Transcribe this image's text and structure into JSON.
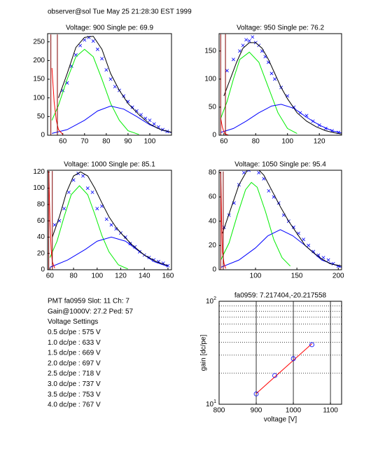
{
  "header": "observer@sol  Tue May 25 21:28:30 EST 1999",
  "info": [
    "PMT fa0959 Slot: 11 Ch: 7",
    "Gain@1000V: 27.2 Ped: 57",
    "Voltage Settings",
    "0.5 dc/pe : 575 V",
    "1.0 dc/pe : 633 V",
    "1.5 dc/pe : 669 V",
    "2.0 dc/pe : 697 V",
    "2.5 dc/pe : 718 V",
    "3.0 dc/pe : 737 V",
    "3.5 dc/pe : 753 V",
    "4.0 dc/pe : 767 V"
  ],
  "chart_data": [
    {
      "type": "line",
      "title": "Voltage: 900 Single pe: 69.9",
      "xlim": [
        53,
        110
      ],
      "ylim": [
        0,
        272
      ],
      "xticks": [
        60,
        70,
        80,
        90,
        100
      ],
      "yticks": [
        0,
        50,
        100,
        150,
        200,
        250
      ],
      "series": [
        {
          "color": "#0000ff",
          "marker": "x",
          "x": [
            60,
            62,
            64,
            66,
            68,
            70,
            72,
            74,
            76,
            78,
            80,
            82,
            84,
            86,
            88,
            90,
            92,
            94,
            96,
            98,
            100,
            102,
            104,
            106,
            108
          ],
          "values": [
            120,
            140,
            185,
            215,
            240,
            255,
            262,
            252,
            230,
            205,
            175,
            150,
            130,
            120,
            105,
            90,
            75,
            65,
            55,
            45,
            40,
            30,
            22,
            15,
            10
          ]
        },
        {
          "color": "#00ee00",
          "x": [
            55,
            58,
            62,
            66,
            70,
            74,
            78,
            82,
            86,
            90,
            95
          ],
          "values": [
            40,
            80,
            150,
            210,
            230,
            210,
            150,
            85,
            40,
            12,
            2
          ]
        },
        {
          "color": "#0000ff",
          "x": [
            55,
            62,
            70,
            76,
            82,
            88,
            94,
            100,
            106,
            110
          ],
          "values": [
            5,
            15,
            40,
            65,
            78,
            70,
            50,
            28,
            13,
            7
          ]
        },
        {
          "color": "#000000",
          "x": [
            58,
            62,
            66,
            70,
            74,
            78,
            82,
            86,
            90,
            95,
            100,
            105,
            110
          ],
          "values": [
            100,
            165,
            235,
            262,
            265,
            230,
            165,
            120,
            85,
            55,
            30,
            15,
            8
          ]
        },
        {
          "color": "#ff0000",
          "x": [
            55,
            56,
            57,
            58,
            60
          ],
          "values": [
            180,
            90,
            40,
            15,
            2
          ]
        },
        {
          "color": "#800000",
          "x": [
            54.5,
            54.5,
            null,
            57.5,
            57.5
          ],
          "values": [
            0,
            270,
            null,
            0,
            270
          ]
        }
      ]
    },
    {
      "type": "line",
      "title": "Voltage: 950 Single pe: 76.2",
      "xlim": [
        57,
        134
      ],
      "ylim": [
        0,
        181
      ],
      "xticks": [
        60,
        80,
        100,
        120
      ],
      "yticks": [
        0,
        50,
        100,
        150
      ],
      "series": [
        {
          "color": "#0000ff",
          "marker": "x",
          "x": [
            62,
            66,
            70,
            72,
            74,
            76,
            78,
            80,
            82,
            84,
            86,
            88,
            90,
            92,
            96,
            100,
            104,
            108,
            112,
            116,
            120,
            124,
            128,
            132
          ],
          "values": [
            115,
            135,
            150,
            160,
            170,
            168,
            175,
            165,
            160,
            150,
            140,
            130,
            110,
            100,
            85,
            70,
            50,
            40,
            35,
            25,
            18,
            12,
            8,
            5
          ]
        },
        {
          "color": "#00ee00",
          "x": [
            58,
            62,
            66,
            70,
            76,
            82,
            88,
            94,
            100,
            106
          ],
          "values": [
            30,
            60,
            100,
            135,
            148,
            130,
            85,
            40,
            12,
            3
          ]
        },
        {
          "color": "#0000ff",
          "x": [
            58,
            66,
            74,
            82,
            90,
            96,
            104,
            112,
            120,
            128,
            134
          ],
          "values": [
            5,
            12,
            25,
            40,
            52,
            55,
            48,
            32,
            18,
            8,
            4
          ]
        },
        {
          "color": "#000000",
          "x": [
            60,
            64,
            68,
            72,
            76,
            80,
            84,
            88,
            92,
            96,
            100,
            106,
            112,
            118,
            124,
            130,
            134
          ],
          "values": [
            70,
            100,
            130,
            155,
            165,
            165,
            155,
            135,
            110,
            85,
            65,
            40,
            25,
            15,
            8,
            4,
            2
          ]
        },
        {
          "color": "#ff0000",
          "x": [
            58,
            59,
            60,
            61,
            63
          ],
          "values": [
            30,
            15,
            6,
            2,
            0
          ]
        },
        {
          "color": "#800000",
          "x": [
            58,
            58,
            null,
            61,
            61
          ],
          "values": [
            0,
            180,
            null,
            0,
            180
          ]
        }
      ]
    },
    {
      "type": "line",
      "title": "Voltage: 1000 Single pe: 85.1",
      "xlim": [
        58,
        163
      ],
      "ylim": [
        0,
        122
      ],
      "xticks": [
        60,
        80,
        100,
        120,
        140,
        160
      ],
      "yticks": [
        0,
        20,
        40,
        60,
        80,
        100,
        120
      ],
      "series": [
        {
          "color": "#0000ff",
          "marker": "x",
          "x": [
            64,
            68,
            72,
            76,
            80,
            84,
            88,
            92,
            96,
            100,
            104,
            108,
            112,
            116,
            120,
            124,
            128,
            132,
            136,
            140,
            144,
            148,
            152,
            156,
            160
          ],
          "values": [
            55,
            60,
            75,
            95,
            110,
            118,
            115,
            100,
            95,
            75,
            78,
            62,
            55,
            50,
            45,
            40,
            32,
            28,
            22,
            18,
            15,
            12,
            10,
            8,
            5
          ]
        },
        {
          "color": "#00ee00",
          "x": [
            60,
            66,
            72,
            78,
            85,
            92,
            98,
            104,
            110,
            118,
            126
          ],
          "values": [
            15,
            35,
            65,
            92,
            103,
            92,
            68,
            42,
            22,
            6,
            1
          ]
        },
        {
          "color": "#0000ff",
          "x": [
            60,
            75,
            90,
            100,
            112,
            124,
            136,
            148,
            160
          ],
          "values": [
            3,
            12,
            25,
            35,
            40,
            35,
            22,
            10,
            4
          ]
        },
        {
          "color": "#000000",
          "x": [
            62,
            68,
            74,
            80,
            86,
            92,
            98,
            104,
            110,
            116,
            122,
            130,
            140,
            150,
            160
          ],
          "values": [
            40,
            65,
            95,
            115,
            120,
            115,
            100,
            82,
            65,
            52,
            42,
            30,
            18,
            10,
            5
          ]
        },
        {
          "color": "#ff0000",
          "x": [
            59,
            60,
            61,
            62,
            64
          ],
          "values": [
            120,
            60,
            25,
            10,
            2
          ]
        },
        {
          "color": "#800000",
          "x": [
            59,
            59,
            null,
            62,
            62
          ],
          "values": [
            0,
            121,
            null,
            0,
            121
          ]
        }
      ]
    },
    {
      "type": "line",
      "title": "Voltage: 1050 Single pe: 95.4",
      "xlim": [
        56,
        204
      ],
      "ylim": [
        0,
        82
      ],
      "xticks": [
        100,
        150,
        200
      ],
      "yticks": [
        0,
        20,
        40,
        60,
        80
      ],
      "series": [
        {
          "color": "#0000ff",
          "marker": "x",
          "x": [
            62,
            68,
            74,
            80,
            86,
            92,
            98,
            104,
            110,
            116,
            122,
            128,
            134,
            140,
            146,
            152,
            158,
            164,
            170,
            176,
            182,
            188,
            194,
            200
          ],
          "values": [
            35,
            45,
            55,
            70,
            80,
            82,
            85,
            80,
            75,
            65,
            60,
            55,
            45,
            40,
            35,
            30,
            25,
            20,
            15,
            12,
            10,
            8,
            5,
            3
          ]
        },
        {
          "color": "#00ee00",
          "x": [
            58,
            68,
            78,
            88,
            95,
            102,
            112,
            122,
            132,
            142
          ],
          "values": [
            8,
            22,
            45,
            66,
            72,
            68,
            48,
            25,
            10,
            3
          ]
        },
        {
          "color": "#0000ff",
          "x": [
            58,
            80,
            100,
            115,
            130,
            145,
            160,
            180,
            204
          ],
          "values": [
            2,
            8,
            18,
            28,
            33,
            28,
            20,
            8,
            2
          ]
        },
        {
          "color": "#000000",
          "x": [
            60,
            70,
            80,
            90,
            100,
            110,
            120,
            130,
            140,
            150,
            160,
            170,
            180,
            190,
            204
          ],
          "values": [
            30,
            50,
            70,
            82,
            85,
            78,
            65,
            52,
            40,
            30,
            20,
            14,
            9,
            5,
            3
          ]
        },
        {
          "color": "#ff0000",
          "x": [
            58,
            59,
            60,
            62,
            64
          ],
          "values": [
            80,
            40,
            15,
            5,
            1
          ]
        },
        {
          "color": "#800000",
          "x": [
            58,
            58,
            null,
            61,
            61
          ],
          "values": [
            0,
            81,
            null,
            0,
            81
          ]
        }
      ]
    },
    {
      "type": "line",
      "title": "fa0959: 7.217404,-20.217558",
      "xlabel": "voltage [V]",
      "ylabel": "gain [dc/pe]",
      "yscale": "log",
      "grid": true,
      "xlim": [
        800,
        1130
      ],
      "ylim": [
        10,
        100
      ],
      "xticks": [
        800,
        900,
        1000,
        1100
      ],
      "yticks": [
        {
          "value": 10,
          "label": "10",
          "exponent": "1"
        },
        {
          "value": 100,
          "label": "10",
          "exponent": "2"
        }
      ],
      "yminor": [
        20,
        30,
        40,
        50,
        60,
        70,
        80,
        90
      ],
      "series": [
        {
          "color": "#ff0000",
          "x": [
            900,
            1050
          ],
          "values": [
            12.7,
            38.7
          ]
        },
        {
          "color": "#0000ff",
          "marker": "o",
          "x": [
            900,
            950,
            1000,
            1050
          ],
          "values": [
            12.6,
            19,
            27.7,
            37.9
          ]
        }
      ]
    }
  ]
}
